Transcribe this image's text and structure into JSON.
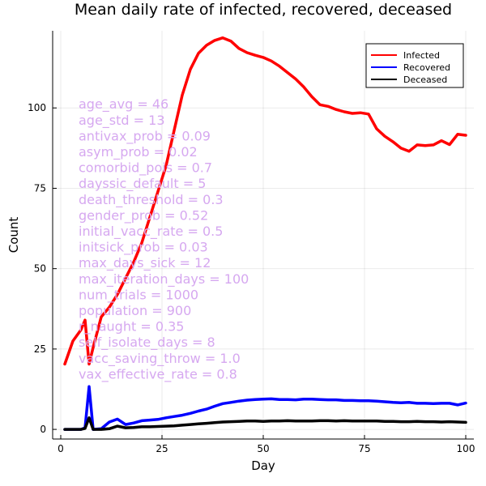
{
  "chart_data": {
    "type": "line",
    "title": "Mean daily rate of infected, recovered, deceased",
    "xlabel": "Day",
    "ylabel": "Count",
    "xlim": [
      -2,
      102
    ],
    "ylim": [
      -3,
      124
    ],
    "xticks": [
      0,
      25,
      50,
      75,
      100
    ],
    "yticks": [
      0,
      25,
      50,
      75,
      100
    ],
    "grid": true,
    "legend_position": "top-right",
    "series": [
      {
        "name": "Infected",
        "color": "#ff0000",
        "x": [
          1,
          3,
          5,
          6,
          7,
          8,
          10,
          12,
          14,
          16,
          18,
          20,
          22,
          24,
          26,
          28,
          30,
          32,
          34,
          36,
          38,
          40,
          42,
          44,
          46,
          48,
          50,
          52,
          54,
          56,
          58,
          60,
          62,
          64,
          66,
          68,
          70,
          72,
          74,
          76,
          78,
          80,
          82,
          84,
          86,
          88,
          90,
          92,
          94,
          96,
          98,
          100
        ],
        "y": [
          20.3,
          27.5,
          31,
          34,
          20.3,
          25.5,
          35,
          38,
          42,
          47,
          52,
          58,
          66,
          74,
          82,
          93,
          104,
          112,
          117,
          119.5,
          121,
          121.8,
          120.8,
          118.5,
          117.2,
          116.4,
          115.7,
          114.6,
          113,
          111,
          109,
          106.5,
          103.5,
          101,
          100.5,
          99.5,
          98.8,
          98.3,
          98.5,
          98.1,
          93.5,
          91.2,
          89.5,
          87.5,
          86.5,
          88.5,
          88.3,
          88.5,
          89.8,
          88.6,
          91.8,
          91.5
        ]
      },
      {
        "name": "Recovered",
        "color": "#0000ff",
        "x": [
          1,
          3,
          5,
          6,
          7,
          8,
          10,
          12,
          14,
          16,
          18,
          20,
          22,
          24,
          26,
          28,
          30,
          32,
          34,
          36,
          38,
          40,
          42,
          44,
          46,
          48,
          50,
          52,
          54,
          56,
          58,
          60,
          62,
          64,
          66,
          68,
          70,
          72,
          74,
          76,
          78,
          80,
          82,
          84,
          86,
          88,
          90,
          92,
          94,
          96,
          98,
          100
        ],
        "y": [
          0,
          0,
          0,
          0.5,
          13.3,
          0,
          0.2,
          2.3,
          3.2,
          1.5,
          2,
          2.7,
          2.9,
          3.1,
          3.6,
          4,
          4.4,
          5,
          5.7,
          6.3,
          7.2,
          8,
          8.4,
          8.8,
          9.1,
          9.3,
          9.4,
          9.5,
          9.3,
          9.3,
          9.2,
          9.4,
          9.4,
          9.3,
          9.2,
          9.2,
          9,
          9,
          8.9,
          8.9,
          8.8,
          8.6,
          8.4,
          8.3,
          8.4,
          8.1,
          8.1,
          8,
          8.1,
          8.1,
          7.6,
          8.2
        ]
      },
      {
        "name": "Deceased",
        "color": "#000000",
        "x": [
          1,
          3,
          5,
          6,
          7,
          8,
          10,
          12,
          14,
          16,
          18,
          20,
          22,
          24,
          26,
          28,
          30,
          32,
          34,
          36,
          38,
          40,
          42,
          44,
          46,
          48,
          50,
          52,
          54,
          56,
          58,
          60,
          62,
          64,
          66,
          68,
          70,
          72,
          74,
          76,
          78,
          80,
          82,
          84,
          86,
          88,
          90,
          92,
          94,
          96,
          98,
          100
        ],
        "y": [
          0,
          0,
          0,
          0.3,
          3.6,
          0,
          0,
          0.2,
          1,
          0.5,
          0.6,
          0.8,
          0.8,
          0.9,
          1,
          1.1,
          1.3,
          1.5,
          1.7,
          1.9,
          2.1,
          2.3,
          2.4,
          2.5,
          2.6,
          2.6,
          2.5,
          2.6,
          2.6,
          2.7,
          2.6,
          2.6,
          2.6,
          2.7,
          2.7,
          2.6,
          2.7,
          2.6,
          2.6,
          2.6,
          2.6,
          2.5,
          2.5,
          2.4,
          2.4,
          2.5,
          2.4,
          2.4,
          2.3,
          2.4,
          2.3,
          2.2
        ]
      }
    ],
    "annotations": [
      "age_avg = 46",
      "age_std = 13",
      "antivax_prob = 0.09",
      "asym_prob = 0.02",
      "comorbid_pois = 0.7",
      "dayssic_default = 5",
      "death_threshold = 0.3",
      "gender_prob = 0.52",
      "initial_vacc_rate = 0.5",
      "initsick_prob = 0.03",
      "max_days_sick = 12",
      "max_iteration_days = 100",
      "num_trials = 1000",
      "population = 900",
      "r_naught = 0.35",
      "self_isolate_days = 8",
      "vacc_saving_throw = 1.0",
      "vax_effective_rate = 0.8"
    ]
  }
}
